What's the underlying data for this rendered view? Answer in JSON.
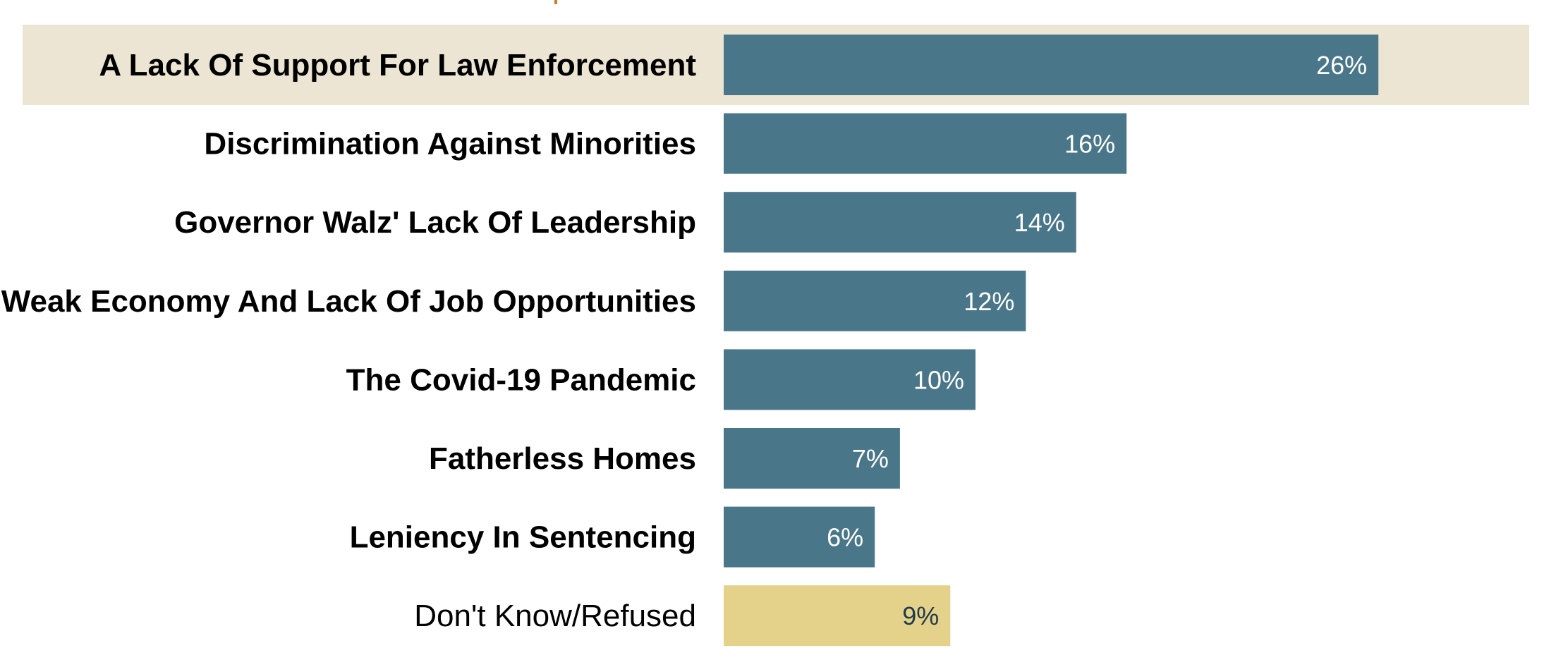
{
  "chart_data": {
    "type": "bar",
    "orientation": "horizontal",
    "categories": [
      "A Lack Of Support For Law Enforcement",
      "Discrimination Against Minorities",
      "Governor Walz' Lack Of Leadership",
      "Weak Economy And Lack Of Job Opportunities",
      "The Covid-19 Pandemic",
      "Fatherless Homes",
      "Leniency In Sentencing",
      "Don't Know/Refused"
    ],
    "values": [
      26,
      16,
      14,
      12,
      10,
      7,
      6,
      9
    ],
    "value_labels": [
      "26%",
      "16%",
      "14%",
      "12%",
      "10%",
      "7%",
      "6%",
      "9%"
    ],
    "unit": "%",
    "bold_categories": [
      true,
      true,
      true,
      true,
      true,
      true,
      true,
      false
    ],
    "highlighted_index": 0,
    "bar_colors": [
      "#497789",
      "#497789",
      "#497789",
      "#497789",
      "#497789",
      "#497789",
      "#497789",
      "#e4d28b"
    ],
    "value_label_colors": [
      "#ffffff",
      "#ffffff",
      "#ffffff",
      "#ffffff",
      "#ffffff",
      "#ffffff",
      "#ffffff",
      "#1f3a4a"
    ],
    "highlight_color": "#ede5d3",
    "title": "",
    "xlabel": "",
    "ylabel": "",
    "xlim": [
      0,
      26
    ],
    "grid": false,
    "legend": "none"
  }
}
